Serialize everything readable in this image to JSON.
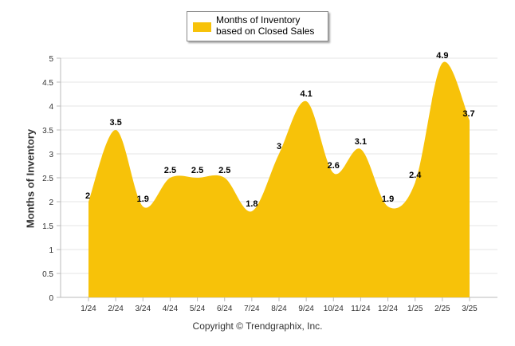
{
  "chart_data": {
    "type": "area",
    "categories": [
      "1/24",
      "2/24",
      "3/24",
      "4/24",
      "5/24",
      "6/24",
      "7/24",
      "8/24",
      "9/24",
      "10/24",
      "11/24",
      "12/24",
      "1/25",
      "2/25",
      "3/25"
    ],
    "series": [
      {
        "name": "Months of Inventory based on Closed Sales",
        "values": [
          2,
          3.5,
          1.9,
          2.5,
          2.5,
          2.5,
          1.8,
          3,
          4.1,
          2.6,
          3.1,
          1.9,
          2.4,
          4.9,
          3.7
        ],
        "color": "#f7c209"
      }
    ],
    "ylabel": "Months of Inventory",
    "ylim": [
      0,
      5
    ],
    "yticks": [
      0,
      0.5,
      1,
      1.5,
      2,
      2.5,
      3,
      3.5,
      4,
      4.5,
      5
    ],
    "grid": true,
    "legend_position": "top-center",
    "data_labels": true
  },
  "legend": {
    "label": "Months of Inventory based on Closed Sales",
    "color": "#f7c209"
  },
  "footer": {
    "copyright": "Copyright © Trendgraphix, Inc."
  }
}
